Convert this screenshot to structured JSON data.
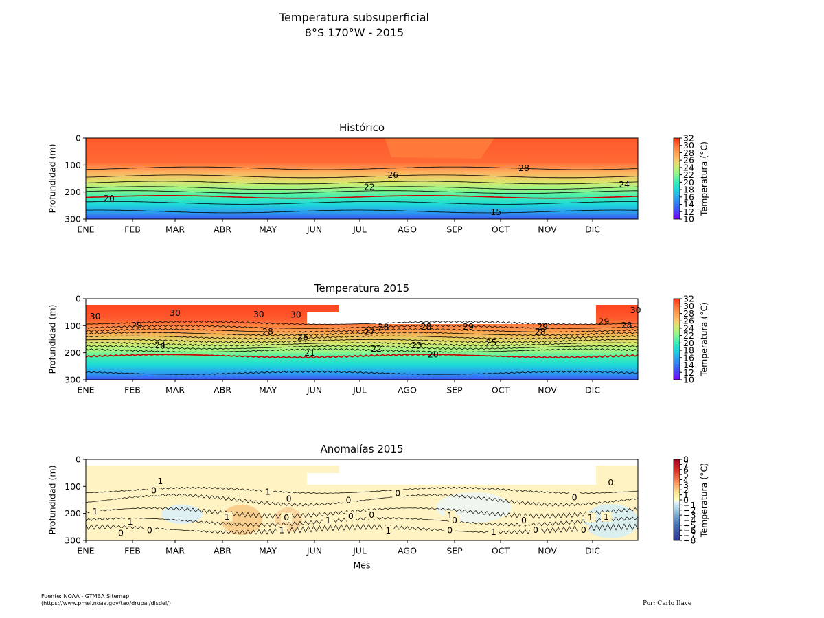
{
  "title_line1": "Temperatura subsuperficial",
  "title_line2": "8°S 170°W - 2015",
  "months": [
    "ENE",
    "FEB",
    "MAR",
    "ABR",
    "MAY",
    "JUN",
    "JUL",
    "AGO",
    "SEP",
    "OCT",
    "NOV",
    "DIC"
  ],
  "depth_ticks": [
    0,
    100,
    200,
    300
  ],
  "ylabel": "Profundidad (m)",
  "xlabel": "Mes",
  "colorbar_label": "Temperatura (°C)",
  "source_line1": "Fuente: NOAA - GTMBA Sitemap",
  "source_line2": "(https://www.pmel.noaa.gov/tao/drupal/disdel/)",
  "author": "Por: Carlo Ilave",
  "colors": {
    "red_contour": "#cc0000",
    "contour": "#000000"
  },
  "chart_data": [
    {
      "type": "heatmap",
      "title": "Histórico",
      "xlabel": "",
      "ylabel": "Profundidad (m)",
      "ylim": [
        300,
        0
      ],
      "colorbar": {
        "label": "Temperatura (°C)",
        "range": [
          10,
          32
        ],
        "ticks": [
          10,
          12,
          14,
          16,
          18,
          20,
          22,
          24,
          26,
          28,
          30,
          32
        ],
        "colormap": "rainbow"
      },
      "contour_labels": [
        {
          "value": "20",
          "month": 0.5,
          "depth": 222
        },
        {
          "value": "26",
          "month": 6.7,
          "depth": 136
        },
        {
          "value": "22",
          "month": 6.2,
          "depth": 181
        },
        {
          "value": "28",
          "month": 9.5,
          "depth": 110
        },
        {
          "value": "15",
          "month": 8.9,
          "depth": 273
        },
        {
          "value": "24",
          "month": 11.7,
          "depth": 172
        }
      ]
    },
    {
      "type": "heatmap",
      "title": "Temperatura 2015",
      "xlabel": "",
      "ylabel": "Profundidad (m)",
      "ylim": [
        300,
        0
      ],
      "colorbar": {
        "label": "Temperatura (°C)",
        "range": [
          10,
          32
        ],
        "ticks": [
          10,
          12,
          14,
          16,
          18,
          20,
          22,
          24,
          26,
          28,
          30,
          32
        ],
        "colormap": "rainbow"
      },
      "contour_labels": [
        {
          "value": "30",
          "month": 0.2,
          "depth": 65
        },
        {
          "value": "29",
          "month": 1.1,
          "depth": 98
        },
        {
          "value": "30",
          "month": 2.0,
          "depth": 52
        },
        {
          "value": "30",
          "month": 3.8,
          "depth": 57
        },
        {
          "value": "30",
          "month": 4.6,
          "depth": 59
        },
        {
          "value": "28",
          "month": 4.0,
          "depth": 121
        },
        {
          "value": "24",
          "month": 1.65,
          "depth": 170
        },
        {
          "value": "26",
          "month": 4.75,
          "depth": 143
        },
        {
          "value": "21",
          "month": 4.9,
          "depth": 199
        },
        {
          "value": "27",
          "month": 6.2,
          "depth": 122
        },
        {
          "value": "28",
          "month": 6.5,
          "depth": 104
        },
        {
          "value": "28",
          "month": 7.4,
          "depth": 103
        },
        {
          "value": "22",
          "month": 6.35,
          "depth": 184
        },
        {
          "value": "23",
          "month": 7.2,
          "depth": 171
        },
        {
          "value": "20",
          "month": 7.55,
          "depth": 206
        },
        {
          "value": "29",
          "month": 8.3,
          "depth": 103
        },
        {
          "value": "25",
          "month": 8.8,
          "depth": 162
        },
        {
          "value": "29",
          "month": 9.9,
          "depth": 103
        },
        {
          "value": "28",
          "month": 9.85,
          "depth": 122
        },
        {
          "value": "29",
          "month": 11.25,
          "depth": 84
        },
        {
          "value": "28",
          "month": 11.75,
          "depth": 98
        },
        {
          "value": "30",
          "month": 11.95,
          "depth": 42
        }
      ]
    },
    {
      "type": "heatmap",
      "title": "Anomalías 2015",
      "xlabel": "Mes",
      "ylabel": "Profundidad (m)",
      "ylim": [
        300,
        0
      ],
      "colorbar": {
        "label": "Temperatura (°C)",
        "range": [
          -8,
          8
        ],
        "ticks": [
          -8,
          -7,
          -6,
          -5,
          -4,
          -3,
          -2,
          -1,
          0,
          1,
          2,
          3,
          4,
          5,
          6,
          7,
          8
        ],
        "tick_labels": [
          "−8",
          "−7",
          "−6",
          "−5",
          "−4",
          "−3",
          "−2",
          "−1",
          "0",
          "1",
          "2",
          "3",
          "4",
          "5",
          "6",
          "7",
          "8"
        ],
        "colormap": "RdYlBu_r"
      },
      "contour_labels": [
        {
          "value": "0",
          "month": 1.5,
          "depth": 115
        },
        {
          "value": "1",
          "month": 1.65,
          "depth": 80
        },
        {
          "value": "1",
          "month": 4.0,
          "depth": 120
        },
        {
          "value": "0",
          "month": 4.45,
          "depth": 145
        },
        {
          "value": "1",
          "month": 3.1,
          "depth": 212
        },
        {
          "value": "0",
          "month": 4.4,
          "depth": 215
        },
        {
          "value": "1",
          "month": 4.3,
          "depth": 262
        },
        {
          "value": "0",
          "month": 0.75,
          "depth": 272
        },
        {
          "value": "0",
          "month": 1.4,
          "depth": 262
        },
        {
          "value": "1",
          "month": 0.2,
          "depth": 192
        },
        {
          "value": "1",
          "month": 0.95,
          "depth": 230
        },
        {
          "value": "1",
          "month": 5.3,
          "depth": 225
        },
        {
          "value": "0",
          "month": 5.8,
          "depth": 210
        },
        {
          "value": "0",
          "month": 6.25,
          "depth": 205
        },
        {
          "value": "0",
          "month": 5.75,
          "depth": 150
        },
        {
          "value": "0",
          "month": 6.8,
          "depth": 125
        },
        {
          "value": "1",
          "month": 6.6,
          "depth": 263
        },
        {
          "value": "1",
          "month": 7.9,
          "depth": 207
        },
        {
          "value": "0",
          "month": 8.0,
          "depth": 225
        },
        {
          "value": "0",
          "month": 7.9,
          "depth": 262
        },
        {
          "value": "1",
          "month": 8.85,
          "depth": 268
        },
        {
          "value": "0",
          "month": 9.5,
          "depth": 225
        },
        {
          "value": "0",
          "month": 9.75,
          "depth": 260
        },
        {
          "value": "0",
          "month": 10.6,
          "depth": 140
        },
        {
          "value": "0",
          "month": 10.8,
          "depth": 260
        },
        {
          "value": "1",
          "month": 10.95,
          "depth": 215
        },
        {
          "value": "0",
          "month": 11.4,
          "depth": 85
        },
        {
          "value": "1",
          "month": 11.3,
          "depth": 212
        }
      ]
    }
  ]
}
